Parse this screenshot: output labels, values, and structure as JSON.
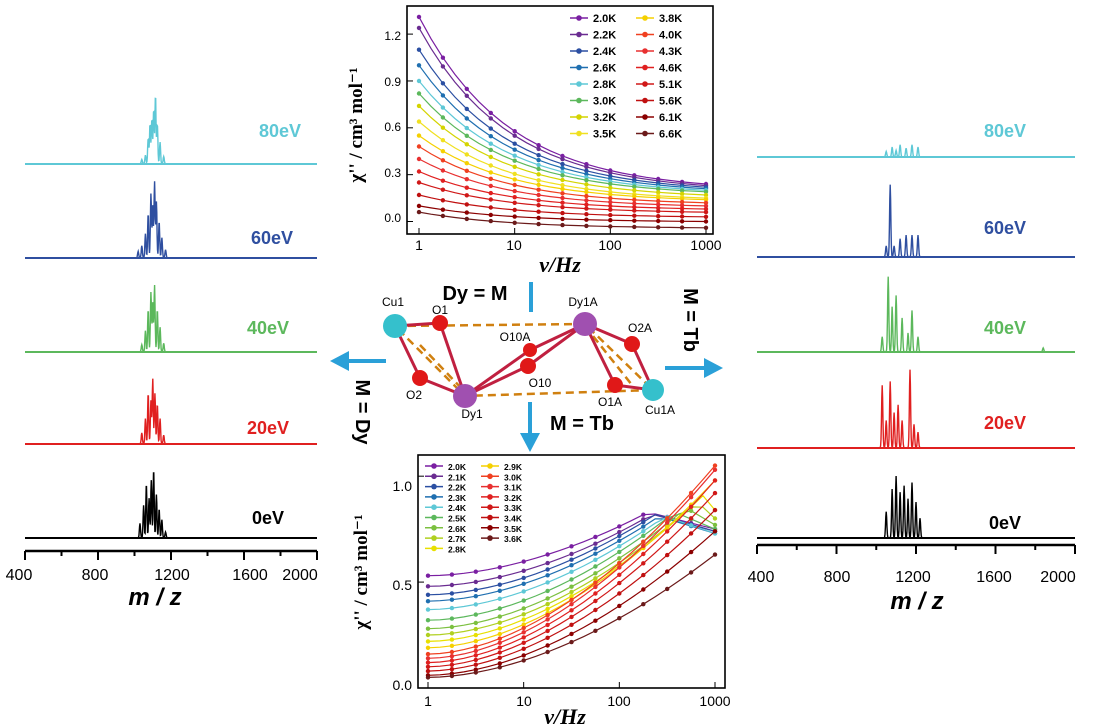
{
  "chart_data": [
    {
      "id": "ms_left",
      "type": "line",
      "xlabel": "m / z",
      "ticks": [
        "400",
        "800",
        "1200",
        "1600",
        "2000"
      ],
      "xlim": [
        400,
        2000
      ],
      "series": [
        {
          "name": "80eV",
          "color": "#5ec8d6",
          "peaks": [
            [
              1040,
              0.06
            ],
            [
              1060,
              0.12
            ],
            [
              1075,
              0.35
            ],
            [
              1085,
              0.55
            ],
            [
              1095,
              0.62
            ],
            [
              1105,
              0.75
            ],
            [
              1115,
              0.95
            ],
            [
              1125,
              0.55
            ],
            [
              1140,
              0.3
            ],
            [
              1160,
              0.1
            ]
          ]
        },
        {
          "name": "60eV",
          "color": "#2f4fa0",
          "peaks": [
            [
              1020,
              0.08
            ],
            [
              1040,
              0.15
            ],
            [
              1060,
              0.3
            ],
            [
              1075,
              0.55
            ],
            [
              1090,
              0.8
            ],
            [
              1100,
              0.65
            ],
            [
              1110,
              0.95
            ],
            [
              1120,
              0.7
            ],
            [
              1135,
              0.45
            ],
            [
              1150,
              0.25
            ],
            [
              1170,
              0.1
            ]
          ]
        },
        {
          "name": "40eV",
          "color": "#5cb85c",
          "peaks": [
            [
              1040,
              0.1
            ],
            [
              1060,
              0.3
            ],
            [
              1075,
              0.6
            ],
            [
              1090,
              0.85
            ],
            [
              1100,
              0.7
            ],
            [
              1110,
              0.95
            ],
            [
              1125,
              0.6
            ],
            [
              1140,
              0.35
            ],
            [
              1160,
              0.12
            ]
          ]
        },
        {
          "name": "20eV",
          "color": "#e02020",
          "peaks": [
            [
              1040,
              0.15
            ],
            [
              1060,
              0.35
            ],
            [
              1075,
              0.7
            ],
            [
              1090,
              0.6
            ],
            [
              1100,
              0.9
            ],
            [
              1112,
              0.7
            ],
            [
              1125,
              0.55
            ],
            [
              1140,
              0.35
            ],
            [
              1160,
              0.12
            ]
          ]
        },
        {
          "name": "0eV",
          "color": "#000000",
          "peaks": [
            [
              1030,
              0.2
            ],
            [
              1050,
              0.45
            ],
            [
              1065,
              0.75
            ],
            [
              1080,
              0.55
            ],
            [
              1092,
              0.8
            ],
            [
              1105,
              0.95
            ],
            [
              1120,
              0.6
            ],
            [
              1135,
              0.4
            ],
            [
              1150,
              0.25
            ],
            [
              1170,
              0.08
            ]
          ]
        }
      ]
    },
    {
      "id": "ms_right",
      "type": "line",
      "xlabel": "m / z",
      "ticks": [
        "400",
        "800",
        "1200",
        "1600",
        "2000"
      ],
      "xlim": [
        400,
        2000
      ],
      "series": [
        {
          "name": "80eV",
          "color": "#5ec8d6",
          "peaks": [
            [
              1050,
              0.25
            ],
            [
              1080,
              0.45
            ],
            [
              1100,
              0.3
            ],
            [
              1120,
              0.55
            ],
            [
              1150,
              0.4
            ],
            [
              1180,
              0.55
            ],
            [
              1210,
              0.45
            ]
          ]
        },
        {
          "name": "60eV",
          "color": "#2f4fa0",
          "peaks": [
            [
              1050,
              0.15
            ],
            [
              1070,
              1.0
            ],
            [
              1090,
              0.15
            ],
            [
              1120,
              0.25
            ],
            [
              1150,
              0.3
            ],
            [
              1180,
              0.3
            ],
            [
              1210,
              0.3
            ]
          ]
        },
        {
          "name": "40eV",
          "color": "#5cb85c",
          "peaks": [
            [
              1030,
              0.2
            ],
            [
              1060,
              1.0
            ],
            [
              1080,
              0.6
            ],
            [
              1100,
              0.75
            ],
            [
              1130,
              0.45
            ],
            [
              1160,
              0.25
            ],
            [
              1180,
              0.55
            ],
            [
              1210,
              0.2
            ],
            [
              1840,
              0.05
            ]
          ]
        },
        {
          "name": "20eV",
          "color": "#e02020",
          "peaks": [
            [
              1030,
              0.8
            ],
            [
              1050,
              0.35
            ],
            [
              1070,
              0.85
            ],
            [
              1090,
              0.45
            ],
            [
              1110,
              0.55
            ],
            [
              1130,
              0.35
            ],
            [
              1170,
              1.0
            ],
            [
              1190,
              0.3
            ],
            [
              1210,
              0.2
            ]
          ]
        },
        {
          "name": "0eV",
          "color": "#000000",
          "peaks": [
            [
              1050,
              0.4
            ],
            [
              1080,
              0.75
            ],
            [
              1100,
              0.95
            ],
            [
              1120,
              0.7
            ],
            [
              1140,
              0.8
            ],
            [
              1160,
              0.6
            ],
            [
              1180,
              0.85
            ],
            [
              1200,
              0.55
            ],
            [
              1220,
              0.3
            ]
          ]
        }
      ]
    },
    {
      "id": "ac_dy",
      "type": "line",
      "xlabel": "ν/Hz",
      "ylabel": "χ'' / cm³ mol⁻¹",
      "xscale": "log",
      "xlim": [
        1,
        1000
      ],
      "ylim": [
        -0.08,
        1.38
      ],
      "yticks": [
        "0.0",
        "0.3",
        "0.6",
        "0.9",
        "1.2"
      ],
      "xticks": [
        "1",
        "10",
        "100",
        "1000"
      ],
      "legend_position": "top-right",
      "series": [
        {
          "name": "2.0K",
          "color": "#7a1fa2",
          "y_at_1": 1.31,
          "y_at_1000": 0.24
        },
        {
          "name": "2.2K",
          "color": "#6a2c91",
          "y_at_1": 1.24,
          "y_at_1000": 0.23
        },
        {
          "name": "2.4K",
          "color": "#2b4fa2",
          "y_at_1": 1.1,
          "y_at_1000": 0.22
        },
        {
          "name": "2.6K",
          "color": "#1f6fb0",
          "y_at_1": 1.0,
          "y_at_1000": 0.21
        },
        {
          "name": "2.8K",
          "color": "#5ec8d6",
          "y_at_1": 0.9,
          "y_at_1000": 0.2
        },
        {
          "name": "3.0K",
          "color": "#5cb85c",
          "y_at_1": 0.82,
          "y_at_1000": 0.19
        },
        {
          "name": "3.2K",
          "color": "#d4d400",
          "y_at_1": 0.74,
          "y_at_1000": 0.17
        },
        {
          "name": "3.5K",
          "color": "#f0e020",
          "y_at_1": 0.64,
          "y_at_1000": 0.15
        },
        {
          "name": "3.8K",
          "color": "#f5d000",
          "y_at_1": 0.55,
          "y_at_1000": 0.14
        },
        {
          "name": "4.0K",
          "color": "#f04020",
          "y_at_1": 0.48,
          "y_at_1000": 0.12
        },
        {
          "name": "4.3K",
          "color": "#e83030",
          "y_at_1": 0.4,
          "y_at_1000": 0.1
        },
        {
          "name": "4.6K",
          "color": "#e02020",
          "y_at_1": 0.32,
          "y_at_1000": 0.08
        },
        {
          "name": "5.1K",
          "color": "#d01818",
          "y_at_1": 0.25,
          "y_at_1000": 0.06
        },
        {
          "name": "5.6K",
          "color": "#c01010",
          "y_at_1": 0.17,
          "y_at_1000": 0.03
        },
        {
          "name": "6.1K",
          "color": "#8b0000",
          "y_at_1": 0.1,
          "y_at_1000": 0.0
        },
        {
          "name": "6.6K",
          "color": "#6b1a1a",
          "y_at_1": 0.06,
          "y_at_1000": -0.04
        }
      ]
    },
    {
      "id": "ac_tb",
      "type": "line",
      "xlabel": "ν/Hz",
      "ylabel": "χ'' / cm³ mol⁻¹",
      "xscale": "log",
      "xlim": [
        1,
        1000
      ],
      "ylim": [
        0.0,
        1.1
      ],
      "yticks": [
        "0.0",
        "0.5",
        "1.0"
      ],
      "xticks": [
        "1",
        "10",
        "100",
        "1000"
      ],
      "legend_position": "top-left",
      "series": [
        {
          "name": "2.0K",
          "color": "#7a1fa2",
          "y_start": 0.53,
          "peak_f": 200,
          "peak_y": 0.83
        },
        {
          "name": "2.1K",
          "color": "#6a2c91",
          "y_start": 0.48,
          "peak_f": 220,
          "peak_y": 0.82
        },
        {
          "name": "2.2K",
          "color": "#2b4fa2",
          "y_start": 0.44,
          "peak_f": 240,
          "peak_y": 0.82
        },
        {
          "name": "2.3K",
          "color": "#1f6fb0",
          "y_start": 0.41,
          "peak_f": 260,
          "peak_y": 0.81
        },
        {
          "name": "2.4K",
          "color": "#5ec8d6",
          "y_start": 0.37,
          "peak_f": 300,
          "peak_y": 0.81
        },
        {
          "name": "2.5K",
          "color": "#5cb85c",
          "y_start": 0.32,
          "peak_f": 380,
          "peak_y": 0.83
        },
        {
          "name": "2.6K",
          "color": "#7cc040",
          "y_start": 0.28,
          "peak_f": 500,
          "peak_y": 0.85
        },
        {
          "name": "2.7K",
          "color": "#b0d020",
          "y_start": 0.25,
          "peak_f": 650,
          "peak_y": 0.88
        },
        {
          "name": "2.8K",
          "color": "#e8e000",
          "y_start": 0.22,
          "peak_f": 800,
          "peak_y": 0.92
        },
        {
          "name": "2.9K",
          "color": "#f5d000",
          "y_start": 0.19,
          "peak_f": 1000,
          "peak_y": 0.98
        },
        {
          "name": "3.0K",
          "color": "#f04020",
          "y_start": 0.16,
          "peak_f": 1000,
          "peak_y": 1.05
        },
        {
          "name": "3.1K",
          "color": "#e83030",
          "y_start": 0.14,
          "peak_f": 1000,
          "peak_y": 1.03
        },
        {
          "name": "3.2K",
          "color": "#e02020",
          "y_start": 0.12,
          "peak_f": 1000,
          "peak_y": 0.98
        },
        {
          "name": "3.3K",
          "color": "#d01818",
          "y_start": 0.1,
          "peak_f": 1000,
          "peak_y": 0.92
        },
        {
          "name": "3.4K",
          "color": "#c01010",
          "y_start": 0.08,
          "peak_f": 1000,
          "peak_y": 0.84
        },
        {
          "name": "3.5K",
          "color": "#8b0000",
          "y_start": 0.06,
          "peak_f": 1000,
          "peak_y": 0.74
        },
        {
          "name": "3.6K",
          "color": "#6b1a1a",
          "y_start": 0.05,
          "peak_f": 1000,
          "peak_y": 0.63
        }
      ]
    }
  ],
  "annotations": {
    "top": "Dy = M",
    "bottom": "M = Tb",
    "left": "M = Dy",
    "right": "M = Tb"
  },
  "structure": {
    "atoms": {
      "cu1": "Cu1",
      "cu1a": "Cu1A",
      "dy1": "Dy1",
      "dy1a": "Dy1A",
      "o1": "O1",
      "o2": "O2",
      "o10": "O10",
      "o10a": "O10A",
      "o1a": "O1A",
      "o2a": "O2A"
    },
    "colors": {
      "cu": "#35c0cc",
      "dy": "#a050b0",
      "o": "#e01818",
      "bond": "#c02040",
      "dash": "#d08010"
    }
  }
}
